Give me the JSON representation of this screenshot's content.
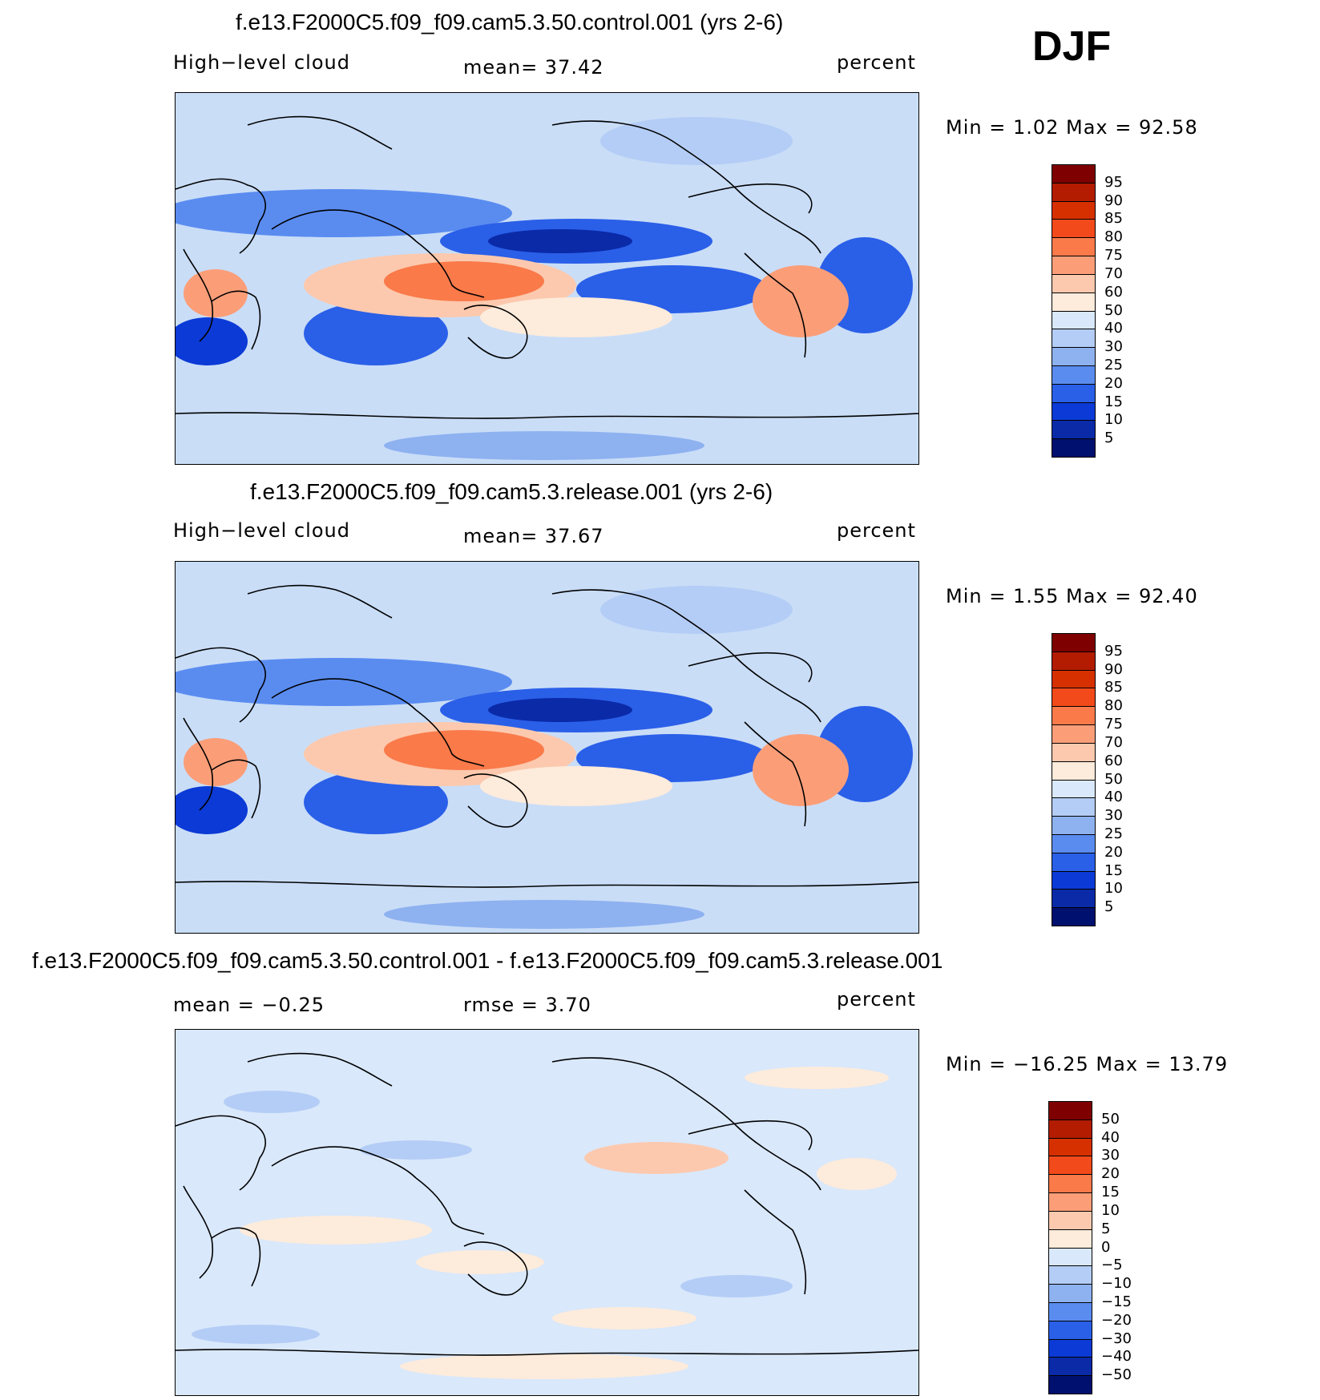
{
  "season": "DJF",
  "panels": [
    {
      "title": "f.e13.F2000C5.f09_f09.cam5.3.50.control.001 (yrs 2-6)",
      "left_label": "High−level cloud",
      "center_label": "mean=   37.42",
      "right_label": "percent",
      "minmax": "Min =    1.02 Max =   92.58",
      "colorbar_labels": [
        "95",
        "90",
        "85",
        "80",
        "75",
        "70",
        "60",
        "50",
        "40",
        "30",
        "25",
        "20",
        "15",
        "10",
        "5"
      ],
      "colors": [
        "#7f0000",
        "#b31c00",
        "#d73000",
        "#f24a1a",
        "#fa7a4a",
        "#fb9e78",
        "#fcc9ae",
        "#fdebdb",
        "#d9e8fb",
        "#b4cdf6",
        "#8eb1f0",
        "#5a8cf0",
        "#2a5fe8",
        "#0b3ad6",
        "#0a2aa8",
        "#00106e"
      ]
    },
    {
      "title": "f.e13.F2000C5.f09_f09.cam5.3.release.001 (yrs 2-6)",
      "left_label": "High−level cloud",
      "center_label": "mean=   37.67",
      "right_label": "percent",
      "minmax": "Min =    1.55 Max =   92.40",
      "colorbar_labels": [
        "95",
        "90",
        "85",
        "80",
        "75",
        "70",
        "60",
        "50",
        "40",
        "30",
        "25",
        "20",
        "15",
        "10",
        "5"
      ],
      "colors": [
        "#7f0000",
        "#b31c00",
        "#d73000",
        "#f24a1a",
        "#fa7a4a",
        "#fb9e78",
        "#fcc9ae",
        "#fdebdb",
        "#d9e8fb",
        "#b4cdf6",
        "#8eb1f0",
        "#5a8cf0",
        "#2a5fe8",
        "#0b3ad6",
        "#0a2aa8",
        "#00106e"
      ]
    },
    {
      "title": "f.e13.F2000C5.f09_f09.cam5.3.50.control.001 - f.e13.F2000C5.f09_f09.cam5.3.release.001",
      "left_label": "mean =   −0.25",
      "center_label": "rmse =    3.70",
      "right_label": "percent",
      "minmax": "Min = −16.25 Max =   13.79",
      "colorbar_labels": [
        "50",
        "40",
        "30",
        "20",
        "15",
        "10",
        "5",
        "0",
        "−5",
        "−10",
        "−15",
        "−20",
        "−30",
        "−40",
        "−50"
      ],
      "colors": [
        "#7f0000",
        "#b31c00",
        "#d73000",
        "#f24a1a",
        "#fa7a4a",
        "#fb9e78",
        "#fcc9ae",
        "#fdebdb",
        "#d9e8fb",
        "#b4cdf6",
        "#8eb1f0",
        "#5a8cf0",
        "#2a5fe8",
        "#0b3ad6",
        "#0a2aa8",
        "#00106e"
      ]
    }
  ]
}
